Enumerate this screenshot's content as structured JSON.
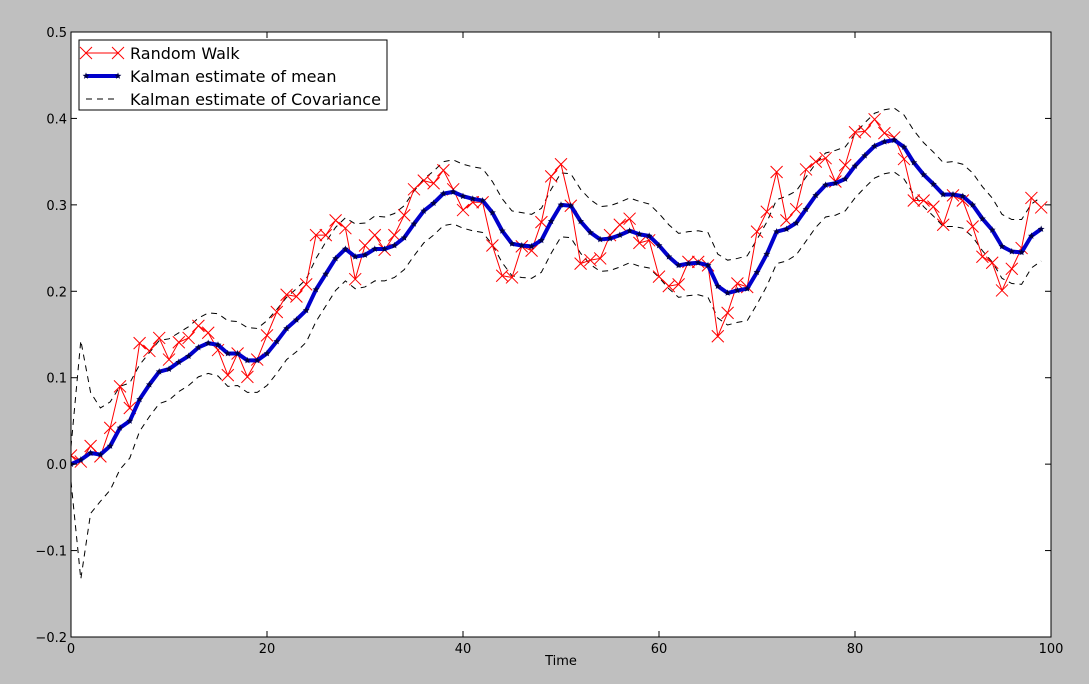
{
  "chart_data": {
    "type": "line",
    "xlabel": "Time",
    "ylabel": "",
    "title": "",
    "xlim": [
      0,
      100
    ],
    "ylim": [
      -0.2,
      0.5
    ],
    "xticks": [
      0,
      20,
      40,
      60,
      80,
      100
    ],
    "xtick_labels": [
      "0",
      "20",
      "40",
      "60",
      "80",
      "100"
    ],
    "yticks": [
      -0.2,
      -0.1,
      0.0,
      0.1,
      0.2,
      0.3,
      0.4,
      0.5
    ],
    "ytick_labels": [
      "−0.2",
      "−0.1",
      "0.0",
      "0.1",
      "0.2",
      "0.3",
      "0.4",
      "0.5"
    ],
    "grid": false,
    "legend_position": "top-left",
    "colors": {
      "random_walk": "#ff0000",
      "kalman_mean": "#0000cc",
      "covariance": "#000000",
      "background": "#bfbfbf",
      "plot_area": "#ffffff"
    },
    "series": [
      {
        "name": "Random Walk",
        "style": "red-line-x-markers",
        "x": [
          0,
          1,
          2,
          3,
          4,
          5,
          6,
          7,
          8,
          9,
          10,
          11,
          12,
          13,
          14,
          15,
          16,
          17,
          18,
          19,
          20,
          21,
          22,
          23,
          24,
          25,
          26,
          27,
          28,
          29,
          30,
          31,
          32,
          33,
          34,
          35,
          36,
          37,
          38,
          39,
          40,
          41,
          42,
          43,
          44,
          45,
          46,
          47,
          48,
          49,
          50,
          51,
          52,
          53,
          54,
          55,
          56,
          57,
          58,
          59,
          60,
          61,
          62,
          63,
          64,
          65,
          66,
          67,
          68,
          69,
          70,
          71,
          72,
          73,
          74,
          75,
          76,
          77,
          78,
          79,
          80,
          81,
          82,
          83,
          84,
          85,
          86,
          87,
          88,
          89,
          90,
          91,
          92,
          93,
          94,
          95,
          96,
          97,
          98,
          99
        ],
        "values": [
          0.01,
          0.003,
          0.021,
          0.009,
          0.042,
          0.09,
          0.065,
          0.14,
          0.131,
          0.146,
          0.121,
          0.141,
          0.146,
          0.16,
          0.152,
          0.132,
          0.103,
          0.128,
          0.101,
          0.121,
          0.149,
          0.176,
          0.196,
          0.194,
          0.208,
          0.265,
          0.265,
          0.282,
          0.273,
          0.214,
          0.253,
          0.265,
          0.248,
          0.265,
          0.288,
          0.318,
          0.328,
          0.325,
          0.34,
          0.318,
          0.294,
          0.303,
          0.303,
          0.253,
          0.218,
          0.216,
          0.252,
          0.247,
          0.28,
          0.333,
          0.347,
          0.299,
          0.232,
          0.236,
          0.238,
          0.265,
          0.277,
          0.284,
          0.256,
          0.259,
          0.217,
          0.206,
          0.208,
          0.234,
          0.234,
          0.23,
          0.148,
          0.175,
          0.209,
          0.205,
          0.269,
          0.292,
          0.338,
          0.282,
          0.295,
          0.341,
          0.35,
          0.354,
          0.327,
          0.346,
          0.384,
          0.385,
          0.399,
          0.383,
          0.378,
          0.353,
          0.305,
          0.305,
          0.298,
          0.277,
          0.311,
          0.305,
          0.275,
          0.24,
          0.233,
          0.201,
          0.226,
          0.25,
          0.308,
          0.297
        ]
      },
      {
        "name": "Kalman estimate of mean",
        "style": "thick-blue-line-star-markers",
        "x": [
          0,
          1,
          2,
          3,
          4,
          5,
          6,
          7,
          8,
          9,
          10,
          11,
          12,
          13,
          14,
          15,
          16,
          17,
          18,
          19,
          20,
          21,
          22,
          23,
          24,
          25,
          26,
          27,
          28,
          29,
          30,
          31,
          32,
          33,
          34,
          35,
          36,
          37,
          38,
          39,
          40,
          41,
          42,
          43,
          44,
          45,
          46,
          47,
          48,
          49,
          50,
          51,
          52,
          53,
          54,
          55,
          56,
          57,
          58,
          59,
          60,
          61,
          62,
          63,
          64,
          65,
          66,
          67,
          68,
          69,
          70,
          71,
          72,
          73,
          74,
          75,
          76,
          77,
          78,
          79,
          80,
          81,
          82,
          83,
          84,
          85,
          86,
          87,
          88,
          89,
          90,
          91,
          92,
          93,
          94,
          95,
          96,
          97,
          98,
          99
        ],
        "values": [
          0.0,
          0.005,
          0.013,
          0.011,
          0.021,
          0.042,
          0.05,
          0.075,
          0.092,
          0.107,
          0.11,
          0.118,
          0.125,
          0.135,
          0.14,
          0.138,
          0.128,
          0.128,
          0.12,
          0.12,
          0.128,
          0.142,
          0.157,
          0.167,
          0.178,
          0.202,
          0.22,
          0.238,
          0.249,
          0.24,
          0.242,
          0.249,
          0.249,
          0.253,
          0.262,
          0.278,
          0.293,
          0.302,
          0.313,
          0.315,
          0.31,
          0.307,
          0.305,
          0.291,
          0.27,
          0.255,
          0.253,
          0.252,
          0.259,
          0.281,
          0.3,
          0.299,
          0.281,
          0.268,
          0.26,
          0.261,
          0.265,
          0.27,
          0.266,
          0.264,
          0.253,
          0.24,
          0.23,
          0.232,
          0.233,
          0.23,
          0.206,
          0.198,
          0.201,
          0.203,
          0.222,
          0.243,
          0.269,
          0.272,
          0.279,
          0.295,
          0.311,
          0.323,
          0.325,
          0.33,
          0.345,
          0.357,
          0.368,
          0.373,
          0.375,
          0.367,
          0.349,
          0.335,
          0.324,
          0.312,
          0.312,
          0.31,
          0.3,
          0.284,
          0.271,
          0.252,
          0.246,
          0.245,
          0.264,
          0.272
        ]
      },
      {
        "name": "Kalman estimate of Covariance",
        "style": "black-dashed-line",
        "x": [
          0,
          1,
          2,
          3,
          4,
          5,
          6,
          7,
          8,
          9,
          10,
          11,
          12,
          13,
          14,
          15,
          16,
          17,
          18,
          19,
          20,
          21,
          22,
          23,
          24,
          25,
          26,
          27,
          28,
          29,
          30,
          31,
          32,
          33,
          34,
          35,
          36,
          37,
          38,
          39,
          40,
          41,
          42,
          43,
          44,
          45,
          46,
          47,
          48,
          49,
          50,
          51,
          52,
          53,
          54,
          55,
          56,
          57,
          58,
          59,
          60,
          61,
          62,
          63,
          64,
          65,
          66,
          67,
          68,
          69,
          70,
          71,
          72,
          73,
          74,
          75,
          76,
          77,
          78,
          79,
          80,
          81,
          82,
          83,
          84,
          85,
          86,
          87,
          88,
          89,
          90,
          91,
          92,
          93,
          94,
          95,
          96,
          97,
          98,
          99
        ],
        "upper": [
          0.02,
          0.143,
          0.083,
          0.065,
          0.072,
          0.09,
          0.094,
          0.115,
          0.129,
          0.143,
          0.145,
          0.152,
          0.159,
          0.169,
          0.175,
          0.174,
          0.166,
          0.165,
          0.158,
          0.157,
          0.166,
          0.179,
          0.193,
          0.203,
          0.214,
          0.238,
          0.257,
          0.274,
          0.285,
          0.278,
          0.279,
          0.287,
          0.286,
          0.29,
          0.299,
          0.316,
          0.33,
          0.339,
          0.35,
          0.352,
          0.347,
          0.344,
          0.342,
          0.327,
          0.307,
          0.293,
          0.291,
          0.289,
          0.296,
          0.318,
          0.337,
          0.336,
          0.318,
          0.306,
          0.298,
          0.299,
          0.303,
          0.308,
          0.304,
          0.301,
          0.29,
          0.277,
          0.267,
          0.269,
          0.27,
          0.268,
          0.243,
          0.236,
          0.238,
          0.241,
          0.26,
          0.28,
          0.306,
          0.31,
          0.316,
          0.332,
          0.348,
          0.36,
          0.363,
          0.367,
          0.382,
          0.395,
          0.406,
          0.41,
          0.412,
          0.404,
          0.386,
          0.372,
          0.361,
          0.349,
          0.35,
          0.347,
          0.337,
          0.321,
          0.308,
          0.289,
          0.283,
          0.283,
          0.301,
          0.309
        ],
        "lower": [
          -0.02,
          -0.133,
          -0.057,
          -0.043,
          -0.03,
          -0.006,
          0.007,
          0.038,
          0.055,
          0.07,
          0.074,
          0.084,
          0.091,
          0.101,
          0.105,
          0.102,
          0.09,
          0.091,
          0.083,
          0.083,
          0.091,
          0.105,
          0.121,
          0.13,
          0.141,
          0.165,
          0.183,
          0.201,
          0.212,
          0.203,
          0.205,
          0.212,
          0.212,
          0.216,
          0.225,
          0.241,
          0.256,
          0.265,
          0.276,
          0.278,
          0.273,
          0.27,
          0.268,
          0.254,
          0.233,
          0.218,
          0.216,
          0.215,
          0.222,
          0.244,
          0.263,
          0.262,
          0.244,
          0.231,
          0.223,
          0.224,
          0.228,
          0.233,
          0.229,
          0.227,
          0.216,
          0.203,
          0.193,
          0.195,
          0.196,
          0.193,
          0.169,
          0.161,
          0.164,
          0.166,
          0.185,
          0.206,
          0.232,
          0.235,
          0.242,
          0.258,
          0.274,
          0.286,
          0.288,
          0.293,
          0.308,
          0.32,
          0.331,
          0.336,
          0.338,
          0.33,
          0.312,
          0.298,
          0.287,
          0.275,
          0.275,
          0.273,
          0.263,
          0.247,
          0.234,
          0.215,
          0.209,
          0.208,
          0.227,
          0.235
        ]
      }
    ]
  }
}
